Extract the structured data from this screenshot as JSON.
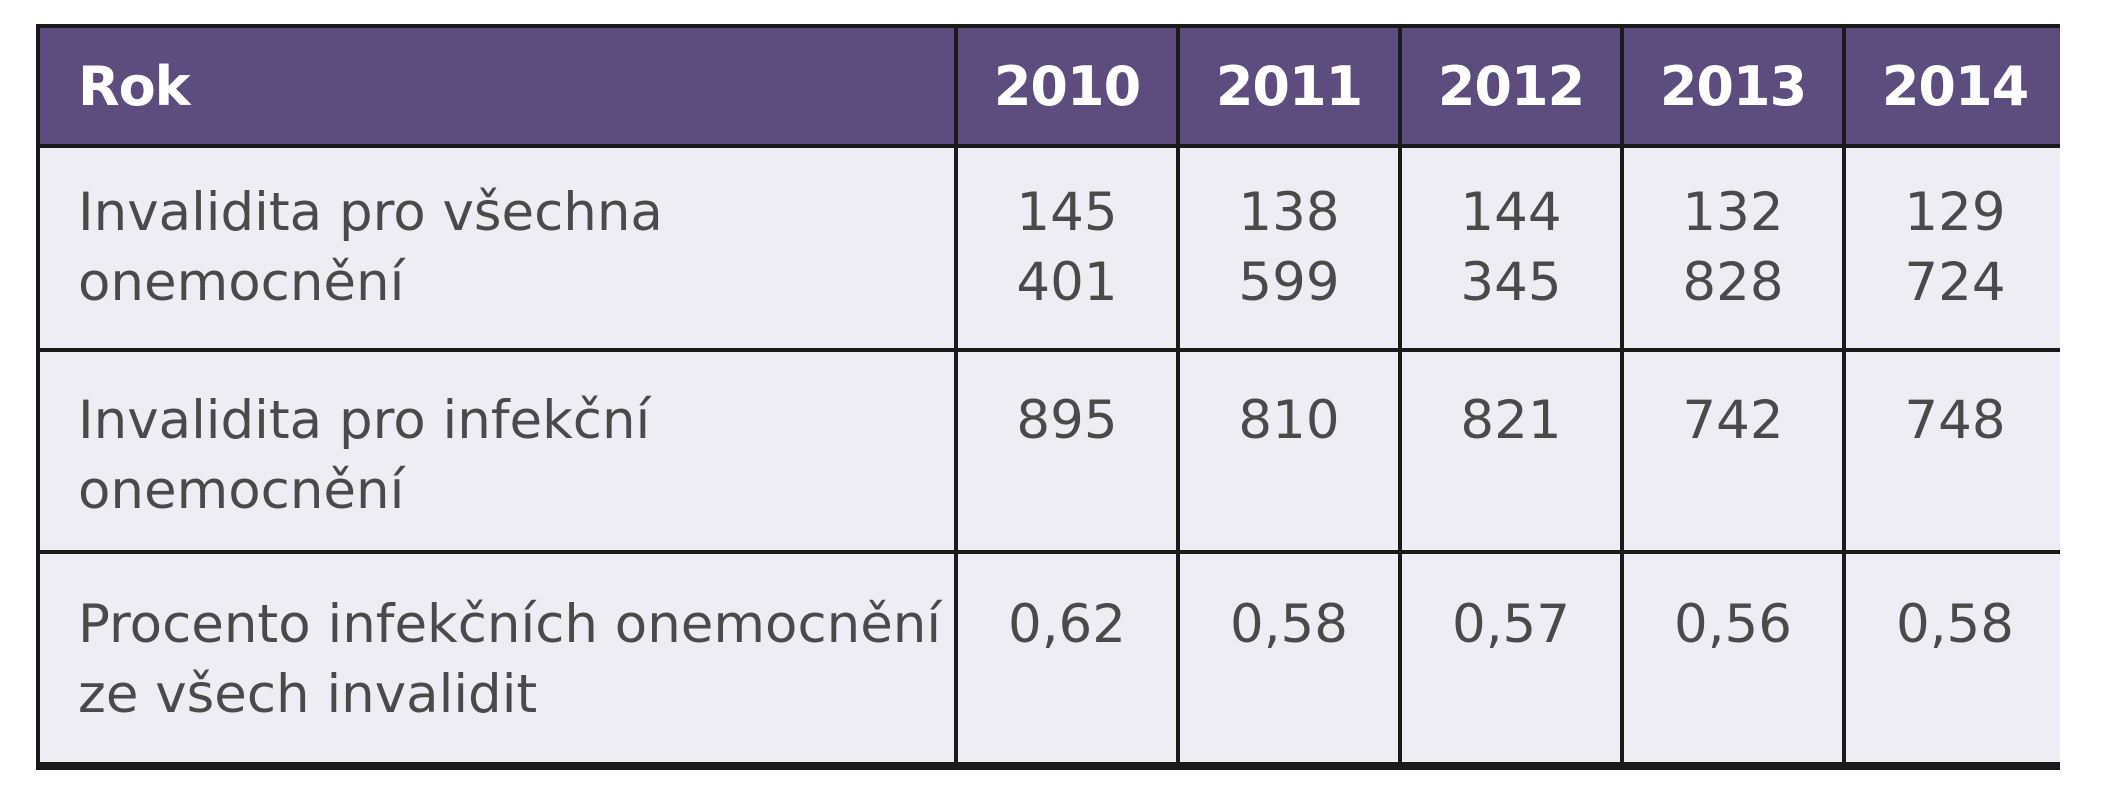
{
  "table": {
    "header": {
      "label": "Rok",
      "years": [
        "2010",
        "2011",
        "2012",
        "2013",
        "2014"
      ]
    },
    "rows": [
      {
        "label": "Invalidita pro všechna onemocnění",
        "values": [
          [
            "145",
            "401"
          ],
          [
            "138",
            "599"
          ],
          [
            "144",
            "345"
          ],
          [
            "132",
            "828"
          ],
          [
            "129",
            "724"
          ]
        ]
      },
      {
        "label": "Invalidita pro infekční onemocnění",
        "values": [
          [
            "895"
          ],
          [
            "810"
          ],
          [
            "821"
          ],
          [
            "742"
          ],
          [
            "748"
          ]
        ]
      },
      {
        "label": "Procento infekčních onemocnění ze všech invalidit",
        "values": [
          [
            "0,62"
          ],
          [
            "0,58"
          ],
          [
            "0,57"
          ],
          [
            "0,56"
          ],
          [
            "0,58"
          ]
        ]
      }
    ]
  },
  "colors": {
    "header_bg": "#5d4d7e",
    "header_text": "#ffffff",
    "body_bg": "#eeedf4",
    "body_text": "#4a4a4a",
    "border": "#1a1a1a"
  }
}
